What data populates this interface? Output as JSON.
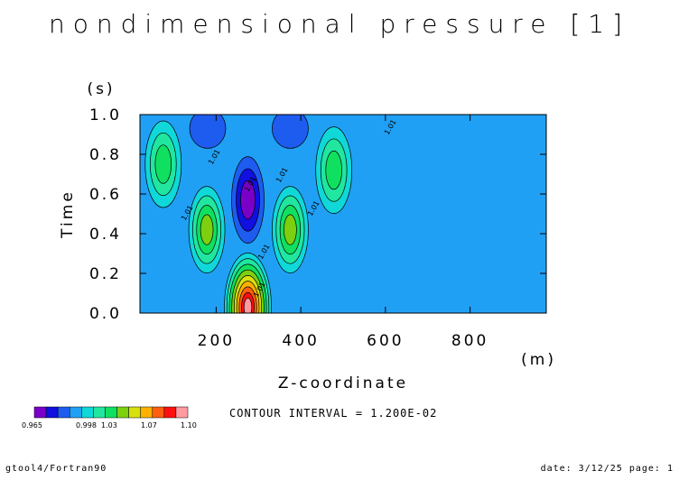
{
  "header": {
    "title": "nondimensional pressure [1]"
  },
  "footer": {
    "left": "gtool4/Fortran90",
    "right": "date: 3/12/25 page: 1"
  },
  "contour_interval_text": "CONTOUR INTERVAL = 1.200E-02",
  "chart_data": {
    "type": "heatmap",
    "title": "nondimensional pressure [1]",
    "xlabel": "Z-coordinate",
    "x_unit": "(m)",
    "ylabel": "Time",
    "y_unit": "(s)",
    "xlim": [
      20,
      980
    ],
    "ylim": [
      0.0,
      1.0
    ],
    "x_ticks": [
      "200",
      "400",
      "600",
      "800"
    ],
    "y_ticks": [
      "0.0",
      "0.2",
      "0.4",
      "0.6",
      "0.8",
      "1.0"
    ],
    "x_tick_values": [
      200,
      400,
      600,
      800
    ],
    "y_tick_values": [
      0.0,
      0.2,
      0.4,
      0.6,
      0.8,
      1.0
    ],
    "contour_interval": 0.012,
    "contour_label": "1.01",
    "colorbar": {
      "tick_labels": [
        "0.965",
        "0.998",
        "1.03",
        "1.07",
        "1.10"
      ],
      "colors": [
        "#7a00c8",
        "#1010e0",
        "#1e5cf0",
        "#20a0f5",
        "#10d8d8",
        "#20e6a0",
        "#10e060",
        "#7cd010",
        "#d8e010",
        "#ffb000",
        "#ff6010",
        "#ff1010",
        "#ff9aa0"
      ]
    },
    "field_features": [
      {
        "kind": "low",
        "z": 180,
        "t": 0.93,
        "value": 0.99
      },
      {
        "kind": "low",
        "z": 375,
        "t": 0.93,
        "value": 0.99
      },
      {
        "kind": "low",
        "z": 275,
        "t": 0.57,
        "value": 0.965
      },
      {
        "kind": "high",
        "z": 178,
        "t": 0.42,
        "value": 1.03
      },
      {
        "kind": "high",
        "z": 375,
        "t": 0.42,
        "value": 1.03
      },
      {
        "kind": "high",
        "z": 75,
        "t": 0.75,
        "value": 1.02
      },
      {
        "kind": "high",
        "z": 478,
        "t": 0.72,
        "value": 1.02
      },
      {
        "kind": "high",
        "z": 275,
        "t": 0.03,
        "value": 1.1
      }
    ]
  }
}
